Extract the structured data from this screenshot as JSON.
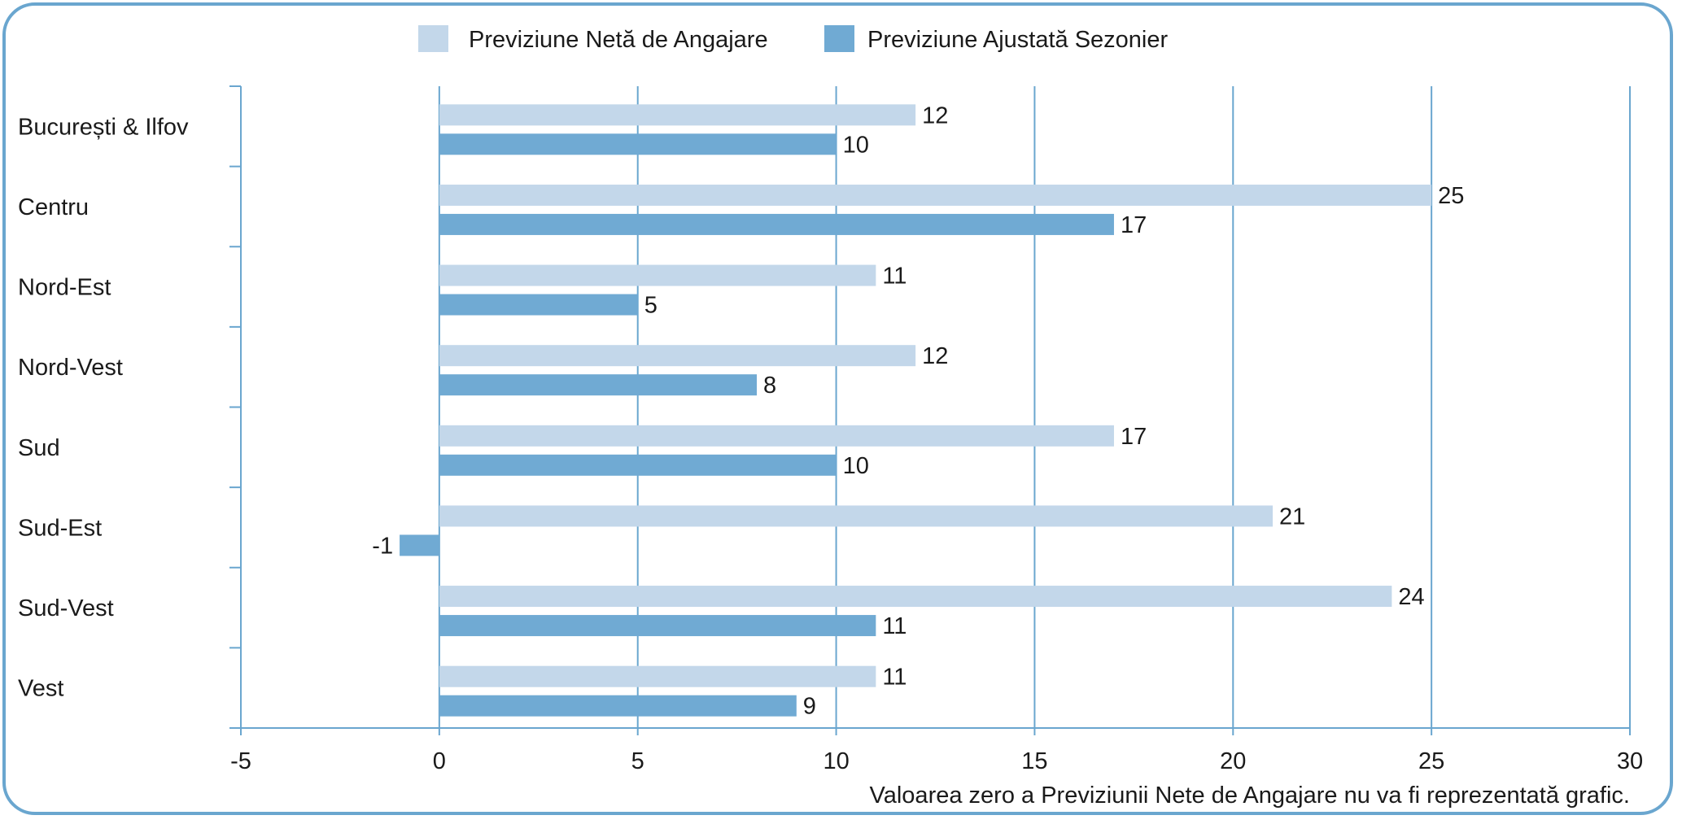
{
  "colors": {
    "series_net": "#c3d7ea",
    "series_adjusted": "#70aad3",
    "grid": "#6aa6cf",
    "frame": "#6aa6cf"
  },
  "note": "Valoarea zero a Previziunii Nete de Angajare nu va fi reprezentată grafic.",
  "chart_data": {
    "type": "bar",
    "orientation": "horizontal",
    "categories": [
      "București & Ilfov",
      "Centru",
      "Nord-Est",
      "Nord-Vest",
      "Sud",
      "Sud-Est",
      "Sud-Vest",
      "Vest"
    ],
    "series": [
      {
        "name": "Previziune Netă de Angajare",
        "values": [
          12,
          25,
          11,
          12,
          17,
          21,
          24,
          11
        ]
      },
      {
        "name": "Previziune Ajustată Sezonier",
        "values": [
          10,
          17,
          5,
          8,
          10,
          -1,
          11,
          9
        ]
      }
    ],
    "xlim": [
      -5,
      30
    ],
    "xticks": [
      -5,
      0,
      5,
      10,
      15,
      20,
      25,
      30
    ],
    "grid": true,
    "legend": "top"
  }
}
